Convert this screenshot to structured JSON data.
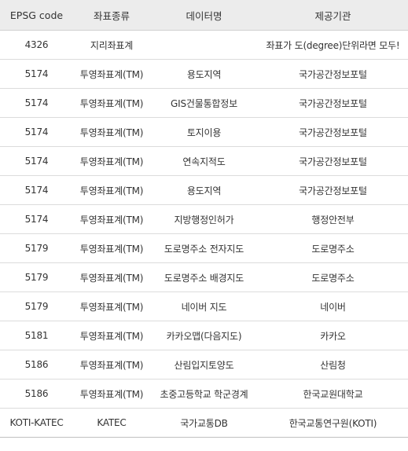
{
  "table": {
    "headers": [
      "EPSG code",
      "좌표종류",
      "데이터명",
      "제공기관"
    ],
    "rows": [
      [
        "4326",
        "지리좌표계",
        "",
        "좌표가 도(degree)단위라면 모두!"
      ],
      [
        "5174",
        "투영좌표계(TM)",
        "용도지역",
        "국가공간정보포털"
      ],
      [
        "5174",
        "투영좌표계(TM)",
        "GIS건물통합정보",
        "국가공간정보포털"
      ],
      [
        "5174",
        "투영좌표계(TM)",
        "토지이용",
        "국가공간정보포털"
      ],
      [
        "5174",
        "투영좌표계(TM)",
        "연속지적도",
        "국가공간정보포털"
      ],
      [
        "5174",
        "투영좌표계(TM)",
        "용도지역",
        "국가공간정보포털"
      ],
      [
        "5174",
        "투영좌표계(TM)",
        "지방행정인허가",
        "행정안전부"
      ],
      [
        "5179",
        "투영좌표계(TM)",
        "도로명주소 전자지도",
        "도로명주소"
      ],
      [
        "5179",
        "투영좌표계(TM)",
        "도로명주소 배경지도",
        "도로명주소"
      ],
      [
        "5179",
        "투영좌표계(TM)",
        "네이버 지도",
        "네이버"
      ],
      [
        "5181",
        "투영좌표계(TM)",
        "카카오맵(다음지도)",
        "카카오"
      ],
      [
        "5186",
        "투영좌표계(TM)",
        "산림입지토양도",
        "산림청"
      ],
      [
        "5186",
        "투영좌표계(TM)",
        "초중고등학교 학군경계",
        "한국교원대학교"
      ],
      [
        "KOTI-KATEC",
        "KATEC",
        "국가교통DB",
        "한국교통연구원(KOTI)"
      ]
    ]
  }
}
